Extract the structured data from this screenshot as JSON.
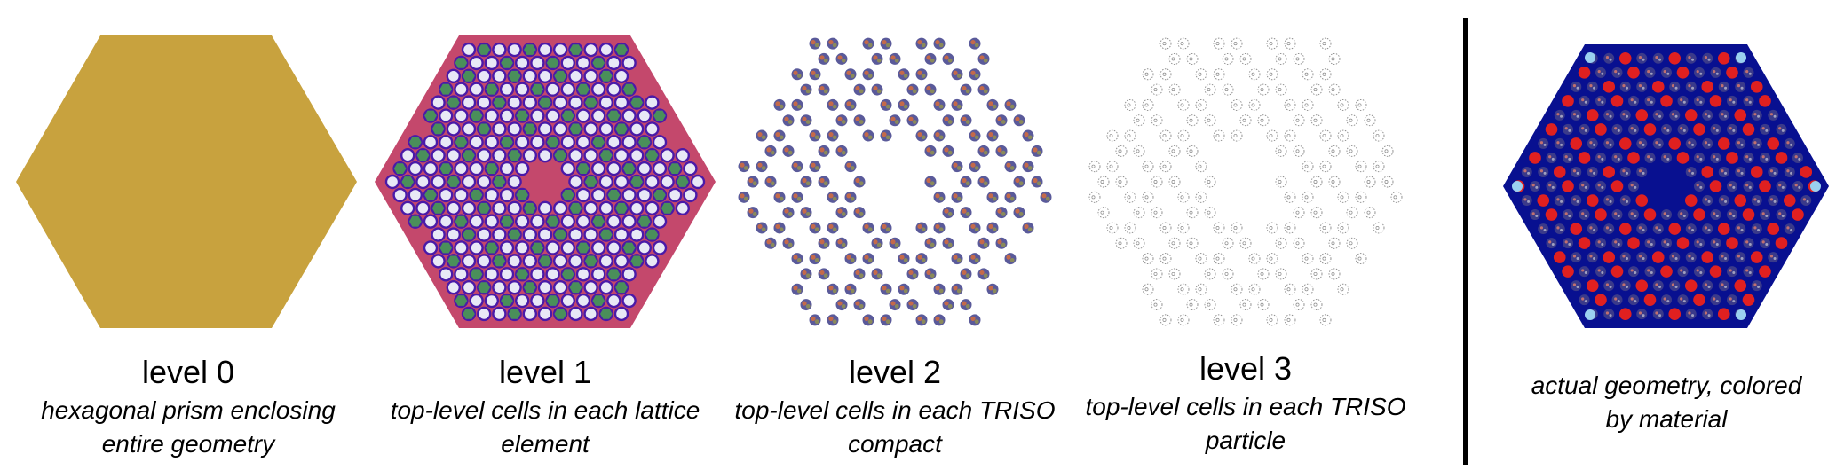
{
  "colors": {
    "level0_fill": "#c8a23e",
    "level1_bg": "#c4486c",
    "level1_ring": "#4a1aa8",
    "level1_white": "#e8e8f6",
    "level1_green": "#4a8f5a",
    "level1_center": "#c4486c",
    "particle_a": "#5a5a9a",
    "particle_b": "#8a8a5a",
    "particle_c": "#c46a4a",
    "level3_stroke": "#888888",
    "material_bg": "#081090",
    "material_red": "#e02020",
    "material_light": "#9ad0f0",
    "divider": "#000000"
  },
  "panels": [
    {
      "title": "level 0",
      "caption": [
        "hexagonal prism enclosing",
        "entire geometry"
      ]
    },
    {
      "title": "level 1",
      "caption": [
        "top-level cells in each lattice",
        "element"
      ]
    },
    {
      "title": "level 2",
      "caption": [
        "top-level cells in each TRISO",
        "compact"
      ]
    },
    {
      "title": "level 3",
      "caption": [
        "top-level cells in each TRISO",
        "particle"
      ]
    },
    {
      "title": "",
      "caption": [
        "actual geometry, colored",
        "by material"
      ]
    }
  ]
}
